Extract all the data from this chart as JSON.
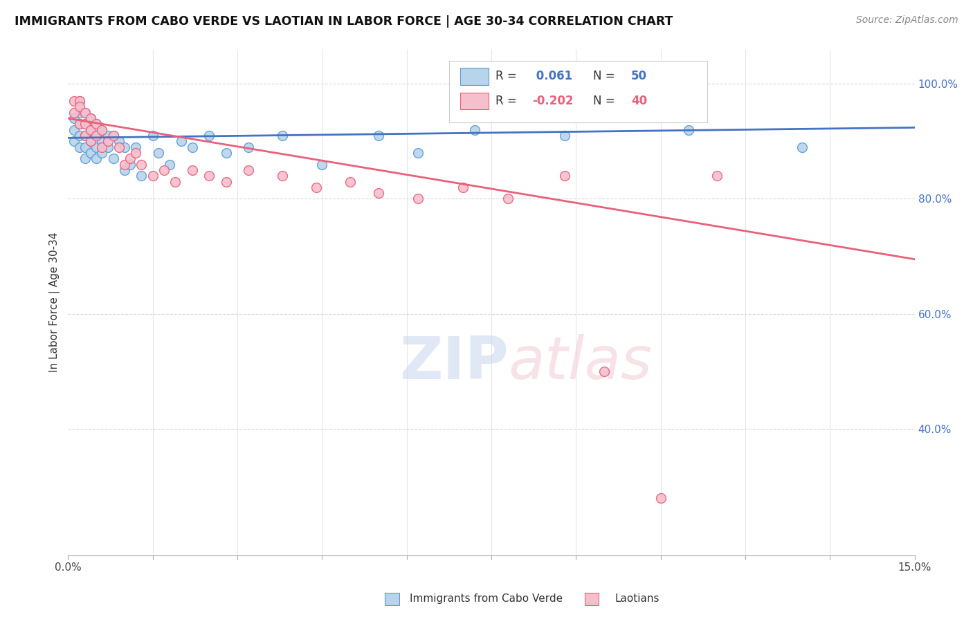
{
  "title": "IMMIGRANTS FROM CABO VERDE VS LAOTIAN IN LABOR FORCE | AGE 30-34 CORRELATION CHART",
  "source": "Source: ZipAtlas.com",
  "ylabel": "In Labor Force | Age 30-34",
  "xlim": [
    0.0,
    0.15
  ],
  "ylim": [
    0.18,
    1.06
  ],
  "xtick_positions": [
    0.0,
    0.015,
    0.03,
    0.045,
    0.06,
    0.075,
    0.09,
    0.105,
    0.12,
    0.135,
    0.15
  ],
  "xtick_labels": [
    "0.0%",
    "",
    "",
    "",
    "",
    "",
    "",
    "",
    "",
    "",
    "15.0%"
  ],
  "ytick_right_vals": [
    1.0,
    0.8,
    0.6,
    0.4
  ],
  "ytick_right_labels": [
    "100.0%",
    "80.0%",
    "60.0%",
    "40.0%"
  ],
  "cabo_verde_color": "#b8d4ea",
  "laotian_color": "#f5bfcc",
  "cabo_verde_edge_color": "#5b9bd5",
  "laotian_edge_color": "#e8607a",
  "cabo_verde_line_color": "#4472c4",
  "laotian_line_color": "#e8607a",
  "watermark_color": "#d0dff0",
  "watermark_color2": "#e8d0d8",
  "grid_color": "#d8d8d8",
  "cabo_verde_x": [
    0.001,
    0.001,
    0.001,
    0.002,
    0.002,
    0.002,
    0.002,
    0.002,
    0.003,
    0.003,
    0.003,
    0.003,
    0.003,
    0.004,
    0.004,
    0.004,
    0.004,
    0.005,
    0.005,
    0.005,
    0.005,
    0.006,
    0.006,
    0.006,
    0.007,
    0.007,
    0.008,
    0.008,
    0.009,
    0.01,
    0.01,
    0.011,
    0.012,
    0.013,
    0.015,
    0.016,
    0.018,
    0.02,
    0.022,
    0.025,
    0.028,
    0.032,
    0.038,
    0.045,
    0.055,
    0.062,
    0.072,
    0.088,
    0.11,
    0.13
  ],
  "cabo_verde_y": [
    0.94,
    0.92,
    0.9,
    0.97,
    0.95,
    0.93,
    0.91,
    0.89,
    0.95,
    0.93,
    0.91,
    0.89,
    0.87,
    0.94,
    0.92,
    0.9,
    0.88,
    0.93,
    0.91,
    0.89,
    0.87,
    0.92,
    0.9,
    0.88,
    0.91,
    0.89,
    0.91,
    0.87,
    0.9,
    0.85,
    0.89,
    0.86,
    0.89,
    0.84,
    0.91,
    0.88,
    0.86,
    0.9,
    0.89,
    0.91,
    0.88,
    0.89,
    0.91,
    0.86,
    0.91,
    0.88,
    0.92,
    0.91,
    0.92,
    0.89
  ],
  "laotian_x": [
    0.001,
    0.001,
    0.002,
    0.002,
    0.002,
    0.003,
    0.003,
    0.003,
    0.004,
    0.004,
    0.004,
    0.005,
    0.005,
    0.006,
    0.006,
    0.007,
    0.008,
    0.009,
    0.01,
    0.011,
    0.012,
    0.013,
    0.015,
    0.017,
    0.019,
    0.022,
    0.025,
    0.028,
    0.032,
    0.038,
    0.044,
    0.05,
    0.055,
    0.062,
    0.07,
    0.078,
    0.088,
    0.095,
    0.105,
    0.115
  ],
  "laotian_y": [
    0.97,
    0.95,
    0.97,
    0.96,
    0.93,
    0.95,
    0.93,
    0.91,
    0.94,
    0.92,
    0.9,
    0.93,
    0.91,
    0.92,
    0.89,
    0.9,
    0.91,
    0.89,
    0.86,
    0.87,
    0.88,
    0.86,
    0.84,
    0.85,
    0.83,
    0.85,
    0.84,
    0.83,
    0.85,
    0.84,
    0.82,
    0.83,
    0.81,
    0.8,
    0.82,
    0.8,
    0.84,
    0.5,
    0.28,
    0.84
  ],
  "cv_line_x": [
    0.0,
    0.15
  ],
  "cv_line_y": [
    0.906,
    0.924
  ],
  "la_line_x": [
    0.0,
    0.15
  ],
  "la_line_y": [
    0.94,
    0.695
  ]
}
